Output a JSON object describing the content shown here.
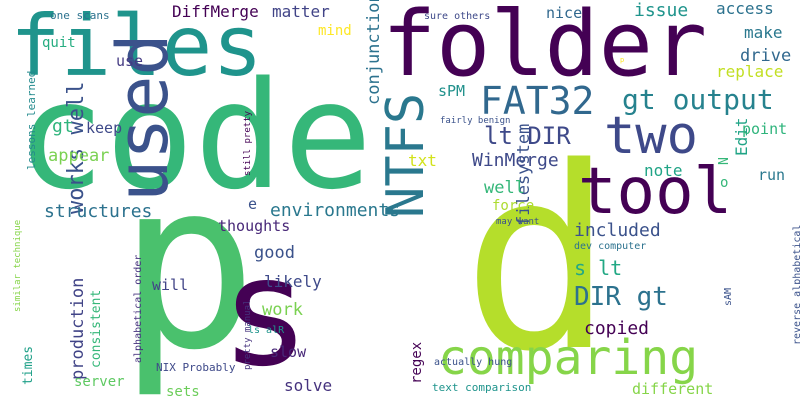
{
  "words": [
    {
      "text": "code",
      "color": "#35b779"
    },
    {
      "text": "p",
      "color": "#4ac16d"
    },
    {
      "text": "d",
      "color": "#b5de2b"
    },
    {
      "text": "files",
      "color": "#1f948c"
    },
    {
      "text": "folder",
      "color": "#440154"
    },
    {
      "text": "s",
      "color": "#440154"
    },
    {
      "text": "used",
      "color": "#3b528b"
    },
    {
      "text": "two",
      "color": "#3e4989"
    },
    {
      "text": "tool",
      "color": "#440154"
    },
    {
      "text": "comparing",
      "color": "#86d549"
    },
    {
      "text": "NTFS",
      "color": "#2a788e"
    },
    {
      "text": "FAT32",
      "color": "#31688e"
    },
    {
      "text": "gt output",
      "color": "#26828e"
    },
    {
      "text": "lt DIR",
      "color": "#3e4989"
    },
    {
      "text": "works well",
      "color": "#3b528b"
    },
    {
      "text": "DIR gt",
      "color": "#2c728e"
    },
    {
      "text": "s lt",
      "color": "#22a884"
    },
    {
      "text": "environments",
      "color": "#2a788e"
    },
    {
      "text": "structures",
      "color": "#2c728e"
    },
    {
      "text": "WinMerge",
      "color": "#3e4989"
    },
    {
      "text": "filesystem",
      "color": "#3b528b"
    },
    {
      "text": "conjunction",
      "color": "#2c728e"
    },
    {
      "text": "production",
      "color": "#414487"
    },
    {
      "text": "included",
      "color": "#3b528b"
    },
    {
      "text": "copied",
      "color": "#440154"
    },
    {
      "text": "appear",
      "color": "#7ad151"
    },
    {
      "text": "issue",
      "color": "#1f948c"
    },
    {
      "text": "drive",
      "color": "#31688e"
    },
    {
      "text": "DiffMerge",
      "color": "#440154"
    },
    {
      "text": "matter",
      "color": "#414487"
    },
    {
      "text": "mind",
      "color": "#fde725"
    },
    {
      "text": "access",
      "color": "#2c728e"
    },
    {
      "text": "make",
      "color": "#2a788e"
    },
    {
      "text": "replace",
      "color": "#c2df23"
    },
    {
      "text": "nice",
      "color": "#31688e"
    },
    {
      "text": "sPM",
      "color": "#21918c"
    },
    {
      "text": "gt",
      "color": "#2fb47c"
    },
    {
      "text": "keep",
      "color": "#3e4989"
    },
    {
      "text": "txt",
      "color": "#d2e21b"
    },
    {
      "text": "well",
      "color": "#35b779"
    },
    {
      "text": "note",
      "color": "#20a486"
    },
    {
      "text": "Edit",
      "color": "#20a486"
    },
    {
      "text": "run",
      "color": "#2a788e"
    },
    {
      "text": "point",
      "color": "#2fb47c"
    },
    {
      "text": "force",
      "color": "#addc30"
    },
    {
      "text": "good",
      "color": "#3b528b"
    },
    {
      "text": "thoughts",
      "color": "#482878"
    },
    {
      "text": "likely",
      "color": "#3e4989"
    },
    {
      "text": "work",
      "color": "#7ad151"
    },
    {
      "text": "will",
      "color": "#414487"
    },
    {
      "text": "slow",
      "color": "#482878"
    },
    {
      "text": "solve",
      "color": "#46337e"
    },
    {
      "text": "sets",
      "color": "#6ccd5a"
    },
    {
      "text": "server",
      "color": "#5ec962"
    },
    {
      "text": "different",
      "color": "#86d549"
    },
    {
      "text": "regex",
      "color": "#440154"
    },
    {
      "text": "consistent",
      "color": "#35b779"
    },
    {
      "text": "times",
      "color": "#1fa088"
    },
    {
      "text": "quit",
      "color": "#26ad81"
    },
    {
      "text": "use",
      "color": "#443a83"
    },
    {
      "text": "e",
      "color": "#3b528b"
    },
    {
      "text": "o",
      "color": "#35b779"
    },
    {
      "text": "N",
      "color": "#35b779"
    },
    {
      "text": "one scans",
      "color": "#2c728e"
    },
    {
      "text": "lessons learned",
      "color": "#238a8d"
    },
    {
      "text": "similar technique",
      "color": "#86d549"
    },
    {
      "text": "still pretty",
      "color": "#440154"
    },
    {
      "text": "fairly benign",
      "color": "#3b528b"
    },
    {
      "text": "sure others",
      "color": "#3e4989"
    },
    {
      "text": "may want",
      "color": "#3b528b"
    },
    {
      "text": "dev computer",
      "color": "#2c728e"
    },
    {
      "text": "sAM",
      "color": "#3b528b"
    },
    {
      "text": "reverse alphabetical",
      "color": "#3b528b"
    },
    {
      "text": "alphabetical order",
      "color": "#46337e"
    },
    {
      "text": "pretty manual",
      "color": "#46337e"
    },
    {
      "text": "ls alR",
      "color": "#1f948c"
    },
    {
      "text": "NIX Probably",
      "color": "#3e4989"
    },
    {
      "text": "actually hung",
      "color": "#3b528b"
    },
    {
      "text": "text comparison",
      "color": "#1f948c"
    },
    {
      "text": "p",
      "color": "#fde725"
    }
  ]
}
